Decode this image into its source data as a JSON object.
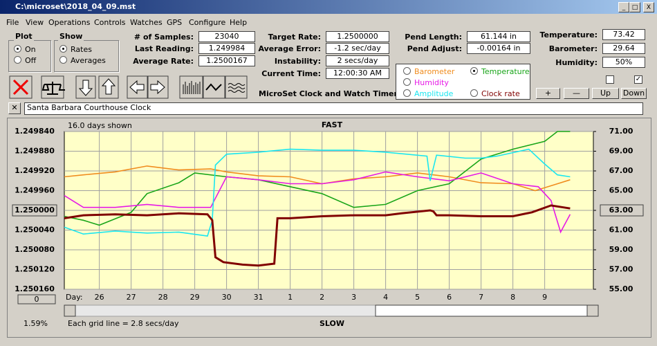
{
  "window": {
    "title": "C:\\microset\\2018_04_09.mst"
  },
  "menu": [
    "File",
    "View",
    "Operations",
    "Controls",
    "Watches",
    "GPS",
    "Configure",
    "Help"
  ],
  "plot_group": {
    "title": "Plot",
    "options": [
      "On",
      "Off"
    ]
  },
  "show_group": {
    "title": "Show",
    "options": [
      "Rates",
      "Averages"
    ]
  },
  "fields": [
    {
      "label": "# of Samples:",
      "value": "23040"
    },
    {
      "label": "Last Reading:",
      "value": "1.249984"
    },
    {
      "label": "Average Rate:",
      "value": "1.2500167"
    },
    {
      "label": "Target Rate:",
      "value": "1.2500000"
    },
    {
      "label": "Average Error:",
      "value": "-1.2 sec/day"
    },
    {
      "label": "Instability:",
      "value": "2 secs/day"
    },
    {
      "label": "Current Time:",
      "value": "12:00:30 AM"
    },
    {
      "label": "Pend Length:",
      "value": "61.144 in"
    },
    {
      "label": "Pend Adjust:",
      "value": "-0.00164 in"
    },
    {
      "label": "Temperature:",
      "value": "73.42"
    },
    {
      "label": "Barometer:",
      "value": "29.64"
    },
    {
      "label": "Humidity:",
      "value": "50%"
    }
  ],
  "caption": "MicroSet Clock and Watch Timer",
  "buttons": [
    "+",
    "—",
    "Up",
    "Down"
  ],
  "watch_name": "Santa Barbara Courthouse Clock",
  "chart_panel": {
    "days_shown": "16.0 days shown",
    "top_label": "FAST",
    "bottom_label": "SLOW",
    "grid_note": "Each grid line = 2.8 secs/day",
    "percent": "1.59%",
    "offset_button": "0"
  },
  "chart_data": {
    "type": "line",
    "xlabel": "Day:",
    "xlim": [
      24.9,
      41.53
    ],
    "xticks": [
      26,
      27,
      28,
      29,
      30,
      31,
      {
        "value": 32,
        "label": "1"
      },
      {
        "value": 33,
        "label": "2"
      },
      {
        "value": 34,
        "label": "3"
      },
      {
        "value": 35,
        "label": "4"
      },
      {
        "value": 36,
        "label": "5"
      },
      {
        "value": 37,
        "label": "6"
      },
      {
        "value": 38,
        "label": "7"
      },
      {
        "value": 39,
        "label": "8"
      },
      {
        "value": 40,
        "label": "9"
      }
    ],
    "ylim": [
      1.25016,
      1.24984
    ],
    "yticks": [
      {
        "value": 1.24984,
        "label": "1.249840"
      },
      {
        "value": 1.24988,
        "label": "1.249880"
      },
      {
        "value": 1.24992,
        "label": "1.249920"
      },
      {
        "value": 1.24996,
        "label": "1.249960"
      },
      {
        "value": 1.25,
        "label": "1.250000"
      },
      {
        "value": 1.25004,
        "label": "1.250040"
      },
      {
        "value": 1.25008,
        "label": "1.250080"
      },
      {
        "value": 1.25012,
        "label": "1.250120"
      },
      {
        "value": 1.25016,
        "label": "1.250160"
      }
    ],
    "y2lim": [
      55,
      71
    ],
    "y2ticks": [
      {
        "value": 71,
        "label": "71.00"
      },
      {
        "value": 69,
        "label": "69.00"
      },
      {
        "value": 67,
        "label": "67.00"
      },
      {
        "value": 65,
        "label": "65.00"
      },
      {
        "value": 63,
        "label": "63.00"
      },
      {
        "value": 61,
        "label": "61.00"
      },
      {
        "value": 59,
        "label": "59.00"
      },
      {
        "value": 57,
        "label": "57.00"
      },
      {
        "value": 55,
        "label": "55.00"
      }
    ],
    "grid": true,
    "series": [
      {
        "name": "Barometer",
        "color": "#f08c1e",
        "axis": "y2",
        "x": [
          24.9,
          25.5,
          26.5,
          27.5,
          28.5,
          29.5,
          30,
          31,
          32,
          33,
          34,
          35,
          36,
          37,
          38,
          39,
          39.7,
          40.3,
          40.8
        ],
        "values": [
          66.4,
          66.6,
          66.9,
          67.5,
          67.1,
          67.2,
          66.9,
          66.5,
          66.4,
          65.7,
          66.2,
          66.4,
          66.8,
          66.4,
          65.8,
          65.7,
          65.0,
          65.6,
          66.1
        ]
      },
      {
        "name": "Temperature",
        "color": "#19a519",
        "axis": "y2",
        "x": [
          24.9,
          25.5,
          26,
          27,
          27.5,
          28.5,
          29,
          30,
          31,
          32,
          33,
          34,
          35,
          36,
          37,
          38,
          39,
          40,
          40.4,
          40.8
        ],
        "values": [
          62.4,
          62.0,
          61.5,
          62.8,
          64.7,
          65.8,
          66.8,
          66.4,
          66.1,
          65.4,
          64.7,
          63.3,
          63.6,
          65.0,
          65.7,
          68.2,
          69.2,
          70.0,
          71.0,
          71.0
        ]
      },
      {
        "name": "Humidity",
        "color": "#e619e6",
        "axis": "y2",
        "x": [
          24.9,
          25.5,
          26.5,
          27.5,
          28.5,
          29.5,
          30,
          31,
          32,
          33,
          34,
          35,
          36,
          37,
          38,
          39,
          39.8,
          40.2,
          40.5,
          40.8
        ],
        "values": [
          64.5,
          63.3,
          63.3,
          63.6,
          63.3,
          63.3,
          66.4,
          66.1,
          65.7,
          65.7,
          66.1,
          66.9,
          66.4,
          66.0,
          66.8,
          65.7,
          65.4,
          64.0,
          60.8,
          62.6
        ]
      },
      {
        "name": "Amplitude",
        "color": "#19e6f0",
        "axis": "y2",
        "x": [
          24.9,
          25.5,
          26.5,
          27.5,
          28.5,
          29.4,
          29.55,
          29.65,
          30,
          31,
          32,
          33,
          34,
          35,
          36.3,
          36.4,
          36.6,
          37.5,
          38,
          38.5,
          39.5,
          40,
          40.4,
          40.8
        ],
        "values": [
          61.3,
          60.6,
          60.9,
          60.7,
          60.8,
          60.4,
          62.0,
          67.6,
          68.7,
          68.9,
          69.2,
          69.1,
          69.1,
          68.9,
          68.5,
          66.0,
          68.6,
          68.3,
          68.3,
          68.5,
          69.2,
          67.7,
          66.6,
          66.4
        ]
      },
      {
        "name": "Clock rate",
        "color": "#800000",
        "axis": "y",
        "x": [
          24.9,
          25.5,
          26.5,
          27.5,
          28.5,
          29.4,
          29.55,
          29.65,
          29.9,
          30.5,
          31,
          31.5,
          31.6,
          32,
          33,
          34,
          35,
          35.5,
          36.4,
          36.5,
          36.6,
          37,
          38,
          39,
          39.6,
          40.2,
          40.8
        ],
        "values": [
          1.250016,
          1.25001,
          1.250008,
          1.25001,
          1.250006,
          1.250008,
          1.25002,
          1.250095,
          1.250105,
          1.25011,
          1.250112,
          1.250108,
          1.250016,
          1.250016,
          1.250012,
          1.25001,
          1.25001,
          1.250006,
          1.25,
          1.250002,
          1.25001,
          1.25001,
          1.250012,
          1.250012,
          1.250004,
          1.24999,
          1.249996
        ]
      }
    ]
  }
}
